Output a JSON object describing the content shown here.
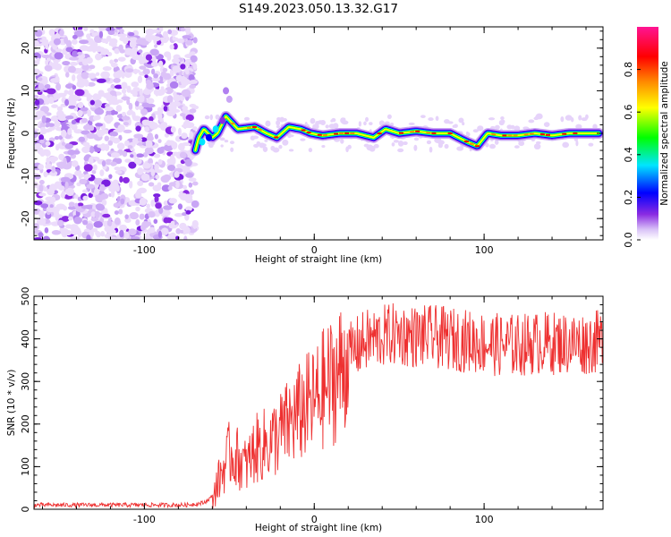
{
  "title": "S149.2023.050.13.32.G17",
  "chart_data": [
    {
      "type": "heatmap",
      "xlabel": "Height of straight line (km)",
      "ylabel": "Frequency (Hz)",
      "xlim": [
        -165,
        170
      ],
      "ylim": [
        -25,
        25
      ],
      "xticks": [
        -100,
        0,
        100
      ],
      "yticks": [
        -20,
        -10,
        0,
        10,
        20
      ],
      "noise_region_x": [
        -165,
        -70
      ],
      "signal_track": [
        {
          "x": -70,
          "y": -4
        },
        {
          "x": -68,
          "y": -1
        },
        {
          "x": -65,
          "y": 1
        },
        {
          "x": -60,
          "y": -1
        },
        {
          "x": -57,
          "y": 0
        },
        {
          "x": -52,
          "y": 4
        },
        {
          "x": -45,
          "y": 1
        },
        {
          "x": -35,
          "y": 1.5
        },
        {
          "x": -28,
          "y": 0
        },
        {
          "x": -22,
          "y": -1
        },
        {
          "x": -15,
          "y": 1.5
        },
        {
          "x": -8,
          "y": 1
        },
        {
          "x": -2,
          "y": 0
        },
        {
          "x": 5,
          "y": -0.5
        },
        {
          "x": 15,
          "y": 0
        },
        {
          "x": 25,
          "y": 0
        },
        {
          "x": 35,
          "y": -1
        },
        {
          "x": 42,
          "y": 1
        },
        {
          "x": 50,
          "y": 0
        },
        {
          "x": 60,
          "y": 0.5
        },
        {
          "x": 70,
          "y": 0
        },
        {
          "x": 80,
          "y": 0
        },
        {
          "x": 90,
          "y": -2
        },
        {
          "x": 96,
          "y": -3
        },
        {
          "x": 102,
          "y": 0
        },
        {
          "x": 110,
          "y": -0.5
        },
        {
          "x": 120,
          "y": -0.5
        },
        {
          "x": 130,
          "y": 0
        },
        {
          "x": 140,
          "y": -0.5
        },
        {
          "x": 150,
          "y": 0
        },
        {
          "x": 160,
          "y": 0
        },
        {
          "x": 168,
          "y": 0
        }
      ],
      "colorbar": {
        "label": "Normalized spectral amplitude",
        "range": [
          0,
          1
        ],
        "ticks": [
          "0.0",
          "0.2",
          "0.4",
          "0.6",
          "0.8"
        ],
        "tick_values": [
          0,
          0.2,
          0.4,
          0.6,
          0.8
        ],
        "colors": [
          "#ffffff",
          "#c9a6f5",
          "#8a2be2",
          "#0000ff",
          "#00e5ff",
          "#00ff00",
          "#ffff00",
          "#ff8c00",
          "#ff0000",
          "#ff1493"
        ]
      }
    },
    {
      "type": "line",
      "xlabel": "Height of straight line (km)",
      "ylabel": "SNR (10 * v/v)",
      "xlim": [
        -165,
        170
      ],
      "ylim": [
        0,
        500
      ],
      "xticks": [
        -100,
        0,
        100
      ],
      "yticks": [
        0,
        100,
        200,
        300,
        400,
        500
      ],
      "series": [
        {
          "color": "#ee3030",
          "x": [
            -165,
            -150,
            -130,
            -110,
            -90,
            -75,
            -65,
            -60,
            -55,
            -50,
            -45,
            -40,
            -35,
            -30,
            -25,
            -20,
            -15,
            -10,
            -5,
            0,
            5,
            10,
            15,
            20,
            25,
            30,
            35,
            40,
            45,
            50,
            60,
            70,
            80,
            90,
            100,
            110,
            120,
            130,
            140,
            150,
            160,
            170
          ],
          "y": [
            10,
            10,
            10,
            10,
            10,
            10,
            15,
            30,
            80,
            130,
            120,
            100,
            140,
            150,
            160,
            180,
            200,
            220,
            240,
            250,
            280,
            300,
            320,
            360,
            380,
            395,
            400,
            405,
            410,
            410,
            405,
            405,
            400,
            395,
            390,
            385,
            385,
            390,
            390,
            390,
            390,
            395
          ]
        }
      ]
    }
  ]
}
